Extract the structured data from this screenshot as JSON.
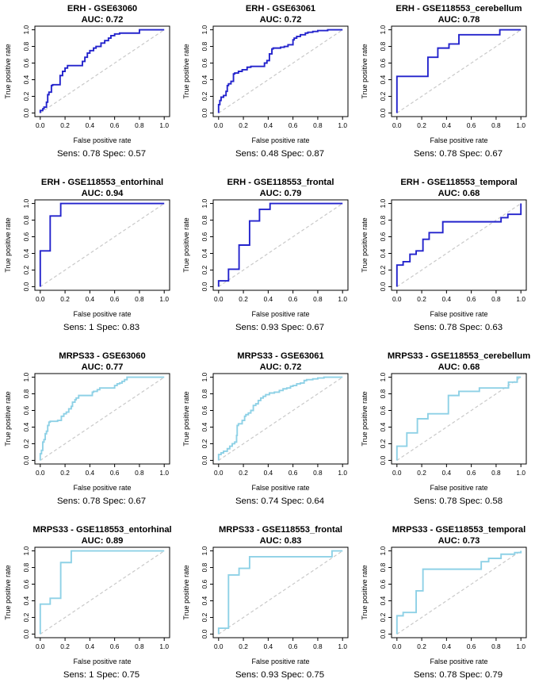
{
  "figure": {
    "description": "Grid of 12 ROC curve plots (4 rows x 3 columns) for genes ERH and MRPS33 across datasets",
    "background": "#ffffff"
  },
  "chart_meta": {
    "xlabel": "False positive rate",
    "ylabel": "True positive rate",
    "tick_labels": [
      "0.0",
      "0.2",
      "0.4",
      "0.6",
      "0.8",
      "1.0"
    ],
    "tick_values": [
      0,
      0.2,
      0.4,
      0.6,
      0.8,
      1.0
    ],
    "x_range": [
      0,
      1
    ],
    "y_range": [
      0,
      1
    ],
    "grid": "off",
    "diagonal_reference_line": {
      "style": "dashed",
      "color": "#c9c9c9"
    },
    "axis_color": "#000000",
    "series_colors": {
      "ERH": "#2323cc",
      "MRPS33": "#8ed1e6"
    }
  },
  "chart_data": [
    {
      "type": "line",
      "gene": "ERH",
      "dataset": "GSE63060",
      "title": "ERH - GSE63060",
      "auc_label": "AUC: 0.72",
      "auc": 0.72,
      "sens": 0.78,
      "spec": 0.57,
      "footer": "Sens: 0.78  Spec: 0.57",
      "color": "#2323cc",
      "roc": [
        [
          0,
          0
        ],
        [
          0.02,
          0.03
        ],
        [
          0.03,
          0.05
        ],
        [
          0.05,
          0.07
        ],
        [
          0.06,
          0.13
        ],
        [
          0.07,
          0.22
        ],
        [
          0.09,
          0.25
        ],
        [
          0.1,
          0.33
        ],
        [
          0.16,
          0.34
        ],
        [
          0.18,
          0.45
        ],
        [
          0.2,
          0.5
        ],
        [
          0.22,
          0.54
        ],
        [
          0.25,
          0.57
        ],
        [
          0.34,
          0.57
        ],
        [
          0.36,
          0.62
        ],
        [
          0.38,
          0.67
        ],
        [
          0.4,
          0.72
        ],
        [
          0.43,
          0.75
        ],
        [
          0.45,
          0.78
        ],
        [
          0.49,
          0.8
        ],
        [
          0.52,
          0.84
        ],
        [
          0.55,
          0.87
        ],
        [
          0.57,
          0.9
        ],
        [
          0.6,
          0.93
        ],
        [
          0.64,
          0.95
        ],
        [
          0.67,
          0.96
        ],
        [
          0.8,
          0.96
        ],
        [
          0.83,
          1
        ],
        [
          1,
          1
        ]
      ]
    },
    {
      "type": "line",
      "gene": "ERH",
      "dataset": "GSE63061",
      "title": "ERH - GSE63061",
      "auc_label": "AUC: 0.72",
      "auc": 0.72,
      "sens": 0.48,
      "spec": 0.87,
      "footer": "Sens: 0.48  Spec: 0.87",
      "color": "#2323cc",
      "roc": [
        [
          0,
          0
        ],
        [
          0.01,
          0.1
        ],
        [
          0.02,
          0.15
        ],
        [
          0.04,
          0.19
        ],
        [
          0.06,
          0.21
        ],
        [
          0.07,
          0.26
        ],
        [
          0.08,
          0.33
        ],
        [
          0.1,
          0.35
        ],
        [
          0.12,
          0.38
        ],
        [
          0.13,
          0.47
        ],
        [
          0.16,
          0.48
        ],
        [
          0.19,
          0.5
        ],
        [
          0.23,
          0.52
        ],
        [
          0.26,
          0.55
        ],
        [
          0.3,
          0.56
        ],
        [
          0.37,
          0.56
        ],
        [
          0.39,
          0.6
        ],
        [
          0.41,
          0.63
        ],
        [
          0.43,
          0.71
        ],
        [
          0.44,
          0.77
        ],
        [
          0.5,
          0.78
        ],
        [
          0.53,
          0.79
        ],
        [
          0.56,
          0.8
        ],
        [
          0.6,
          0.82
        ],
        [
          0.61,
          0.88
        ],
        [
          0.63,
          0.9
        ],
        [
          0.66,
          0.92
        ],
        [
          0.7,
          0.94
        ],
        [
          0.72,
          0.96
        ],
        [
          0.76,
          0.97
        ],
        [
          0.8,
          0.98
        ],
        [
          0.88,
          0.99
        ],
        [
          0.9,
          1
        ],
        [
          1,
          1
        ]
      ]
    },
    {
      "type": "line",
      "gene": "ERH",
      "dataset": "GSE118553_cerebellum",
      "title": "ERH - GSE118553_cerebellum",
      "auc_label": "AUC: 0.78",
      "auc": 0.78,
      "sens": 0.78,
      "spec": 0.67,
      "footer": "Sens: 0.78  Spec: 0.67",
      "color": "#2323cc",
      "roc": [
        [
          0,
          0
        ],
        [
          0,
          0.44
        ],
        [
          0.25,
          0.44
        ],
        [
          0.25,
          0.67
        ],
        [
          0.33,
          0.67
        ],
        [
          0.33,
          0.78
        ],
        [
          0.42,
          0.78
        ],
        [
          0.42,
          0.83
        ],
        [
          0.5,
          0.83
        ],
        [
          0.5,
          0.94
        ],
        [
          0.83,
          0.94
        ],
        [
          0.83,
          1
        ],
        [
          1,
          1
        ]
      ]
    },
    {
      "type": "line",
      "gene": "ERH",
      "dataset": "GSE118553_entorhinal",
      "title": "ERH - GSE118553_entorhinal",
      "auc_label": "AUC: 0.94",
      "auc": 0.94,
      "sens": 1,
      "spec": 0.83,
      "footer": "Sens: 1  Spec: 0.83",
      "color": "#2323cc",
      "roc": [
        [
          0,
          0
        ],
        [
          0,
          0.43
        ],
        [
          0.08,
          0.43
        ],
        [
          0.08,
          0.85
        ],
        [
          0.165,
          0.85
        ],
        [
          0.165,
          1
        ],
        [
          1,
          1
        ]
      ]
    },
    {
      "type": "line",
      "gene": "ERH",
      "dataset": "GSE118553_frontal",
      "title": "ERH - GSE118553_frontal",
      "auc_label": "AUC: 0.79",
      "auc": 0.79,
      "sens": 0.93,
      "spec": 0.67,
      "footer": "Sens: 0.93  Spec: 0.67",
      "color": "#2323cc",
      "roc": [
        [
          0,
          0
        ],
        [
          0,
          0.07
        ],
        [
          0.08,
          0.07
        ],
        [
          0.08,
          0.21
        ],
        [
          0.165,
          0.21
        ],
        [
          0.165,
          0.5
        ],
        [
          0.25,
          0.5
        ],
        [
          0.25,
          0.79
        ],
        [
          0.33,
          0.79
        ],
        [
          0.33,
          0.93
        ],
        [
          0.415,
          0.93
        ],
        [
          0.415,
          1
        ],
        [
          1,
          1
        ]
      ]
    },
    {
      "type": "line",
      "gene": "ERH",
      "dataset": "GSE118553_temporal",
      "title": "ERH - GSE118553_temporal",
      "auc_label": "AUC: 0.68",
      "auc": 0.68,
      "sens": 0.78,
      "spec": 0.63,
      "footer": "Sens: 0.78  Spec: 0.63",
      "color": "#2323cc",
      "roc": [
        [
          0,
          0
        ],
        [
          0,
          0.26
        ],
        [
          0.05,
          0.26
        ],
        [
          0.05,
          0.3
        ],
        [
          0.105,
          0.3
        ],
        [
          0.105,
          0.39
        ],
        [
          0.155,
          0.39
        ],
        [
          0.155,
          0.43
        ],
        [
          0.21,
          0.43
        ],
        [
          0.21,
          0.57
        ],
        [
          0.26,
          0.57
        ],
        [
          0.26,
          0.65
        ],
        [
          0.37,
          0.65
        ],
        [
          0.37,
          0.78
        ],
        [
          0.84,
          0.78
        ],
        [
          0.84,
          0.83
        ],
        [
          0.895,
          0.83
        ],
        [
          0.895,
          0.87
        ],
        [
          1,
          0.87
        ],
        [
          1,
          1
        ]
      ]
    },
    {
      "type": "line",
      "gene": "MRPS33",
      "dataset": "GSE63060",
      "title": "MRPS33 - GSE63060",
      "auc_label": "AUC: 0.77",
      "auc": 0.77,
      "sens": 0.78,
      "spec": 0.67,
      "footer": "Sens: 0.78  Spec: 0.67",
      "color": "#8ed1e6",
      "roc": [
        [
          0,
          0
        ],
        [
          0.01,
          0.08
        ],
        [
          0.02,
          0.12
        ],
        [
          0.03,
          0.22
        ],
        [
          0.04,
          0.25
        ],
        [
          0.05,
          0.32
        ],
        [
          0.06,
          0.35
        ],
        [
          0.07,
          0.42
        ],
        [
          0.08,
          0.46
        ],
        [
          0.14,
          0.47
        ],
        [
          0.17,
          0.48
        ],
        [
          0.19,
          0.53
        ],
        [
          0.21,
          0.56
        ],
        [
          0.23,
          0.58
        ],
        [
          0.25,
          0.62
        ],
        [
          0.26,
          0.65
        ],
        [
          0.28,
          0.7
        ],
        [
          0.29,
          0.73
        ],
        [
          0.31,
          0.75
        ],
        [
          0.33,
          0.78
        ],
        [
          0.42,
          0.78
        ],
        [
          0.43,
          0.82
        ],
        [
          0.46,
          0.83
        ],
        [
          0.48,
          0.85
        ],
        [
          0.5,
          0.87
        ],
        [
          0.6,
          0.87
        ],
        [
          0.62,
          0.9
        ],
        [
          0.64,
          0.92
        ],
        [
          0.66,
          0.93
        ],
        [
          0.68,
          0.95
        ],
        [
          0.7,
          0.97
        ],
        [
          0.72,
          1
        ],
        [
          1,
          1
        ]
      ]
    },
    {
      "type": "line",
      "gene": "MRPS33",
      "dataset": "GSE63061",
      "title": "MRPS33 - GSE63061",
      "auc_label": "AUC: 0.72",
      "auc": 0.72,
      "sens": 0.74,
      "spec": 0.64,
      "footer": "Sens: 0.74  Spec: 0.64",
      "color": "#8ed1e6",
      "roc": [
        [
          0,
          0
        ],
        [
          0.02,
          0.07
        ],
        [
          0.04,
          0.09
        ],
        [
          0.07,
          0.11
        ],
        [
          0.09,
          0.14
        ],
        [
          0.11,
          0.17
        ],
        [
          0.13,
          0.2
        ],
        [
          0.145,
          0.22
        ],
        [
          0.15,
          0.3
        ],
        [
          0.16,
          0.42
        ],
        [
          0.19,
          0.44
        ],
        [
          0.21,
          0.48
        ],
        [
          0.22,
          0.53
        ],
        [
          0.24,
          0.55
        ],
        [
          0.26,
          0.57
        ],
        [
          0.28,
          0.6
        ],
        [
          0.3,
          0.66
        ],
        [
          0.32,
          0.68
        ],
        [
          0.34,
          0.72
        ],
        [
          0.36,
          0.75
        ],
        [
          0.38,
          0.77
        ],
        [
          0.41,
          0.79
        ],
        [
          0.45,
          0.81
        ],
        [
          0.49,
          0.82
        ],
        [
          0.52,
          0.84
        ],
        [
          0.55,
          0.86
        ],
        [
          0.58,
          0.87
        ],
        [
          0.6,
          0.89
        ],
        [
          0.63,
          0.9
        ],
        [
          0.66,
          0.92
        ],
        [
          0.69,
          0.93
        ],
        [
          0.71,
          0.96
        ],
        [
          0.76,
          0.97
        ],
        [
          0.8,
          0.98
        ],
        [
          0.85,
          0.99
        ],
        [
          0.88,
          1
        ],
        [
          1,
          1
        ]
      ]
    },
    {
      "type": "line",
      "gene": "MRPS33",
      "dataset": "GSE118553_cerebellum",
      "title": "MRPS33 - GSE118553_cerebellum",
      "auc_label": "AUC: 0.68",
      "auc": 0.68,
      "sens": 0.78,
      "spec": 0.58,
      "footer": "Sens: 0.78  Spec: 0.58",
      "color": "#8ed1e6",
      "roc": [
        [
          0,
          0
        ],
        [
          0,
          0.17
        ],
        [
          0.08,
          0.17
        ],
        [
          0.08,
          0.33
        ],
        [
          0.165,
          0.33
        ],
        [
          0.165,
          0.5
        ],
        [
          0.25,
          0.5
        ],
        [
          0.25,
          0.56
        ],
        [
          0.415,
          0.56
        ],
        [
          0.415,
          0.78
        ],
        [
          0.5,
          0.78
        ],
        [
          0.5,
          0.83
        ],
        [
          0.665,
          0.83
        ],
        [
          0.665,
          0.87
        ],
        [
          0.9,
          0.87
        ],
        [
          0.9,
          0.94
        ],
        [
          0.97,
          0.94
        ],
        [
          0.97,
          1
        ],
        [
          1,
          1
        ]
      ]
    },
    {
      "type": "line",
      "gene": "MRPS33",
      "dataset": "GSE118553_entorhinal",
      "title": "MRPS33 - GSE118553_entorhinal",
      "auc_label": "AUC: 0.89",
      "auc": 0.89,
      "sens": 1,
      "spec": 0.75,
      "footer": "Sens: 1  Spec: 0.75",
      "color": "#8ed1e6",
      "roc": [
        [
          0,
          0
        ],
        [
          0,
          0.36
        ],
        [
          0.08,
          0.36
        ],
        [
          0.08,
          0.43
        ],
        [
          0.165,
          0.43
        ],
        [
          0.165,
          0.86
        ],
        [
          0.25,
          0.86
        ],
        [
          0.25,
          1
        ],
        [
          1,
          1
        ]
      ]
    },
    {
      "type": "line",
      "gene": "MRPS33",
      "dataset": "GSE118553_frontal",
      "title": "MRPS33 - GSE118553_frontal",
      "auc_label": "AUC: 0.83",
      "auc": 0.83,
      "sens": 0.93,
      "spec": 0.75,
      "footer": "Sens: 0.93  Spec: 0.75",
      "color": "#8ed1e6",
      "roc": [
        [
          0,
          0
        ],
        [
          0,
          0.07
        ],
        [
          0.08,
          0.07
        ],
        [
          0.08,
          0.71
        ],
        [
          0.165,
          0.71
        ],
        [
          0.165,
          0.79
        ],
        [
          0.25,
          0.79
        ],
        [
          0.25,
          0.93
        ],
        [
          0.915,
          0.93
        ],
        [
          0.915,
          1
        ],
        [
          1,
          1
        ]
      ]
    },
    {
      "type": "line",
      "gene": "MRPS33",
      "dataset": "GSE118553_temporal",
      "title": "MRPS33 - GSE118553_temporal",
      "auc_label": "AUC: 0.73",
      "auc": 0.73,
      "sens": 0.78,
      "spec": 0.79,
      "footer": "Sens: 0.78  Spec: 0.79",
      "color": "#8ed1e6",
      "roc": [
        [
          0,
          0
        ],
        [
          0,
          0.22
        ],
        [
          0.05,
          0.22
        ],
        [
          0.05,
          0.26
        ],
        [
          0.155,
          0.26
        ],
        [
          0.155,
          0.52
        ],
        [
          0.21,
          0.52
        ],
        [
          0.21,
          0.78
        ],
        [
          0.68,
          0.78
        ],
        [
          0.68,
          0.87
        ],
        [
          0.74,
          0.87
        ],
        [
          0.74,
          0.91
        ],
        [
          0.84,
          0.91
        ],
        [
          0.84,
          0.96
        ],
        [
          0.95,
          0.96
        ],
        [
          0.95,
          0.98
        ],
        [
          1,
          0.98
        ],
        [
          1,
          1
        ]
      ]
    }
  ]
}
